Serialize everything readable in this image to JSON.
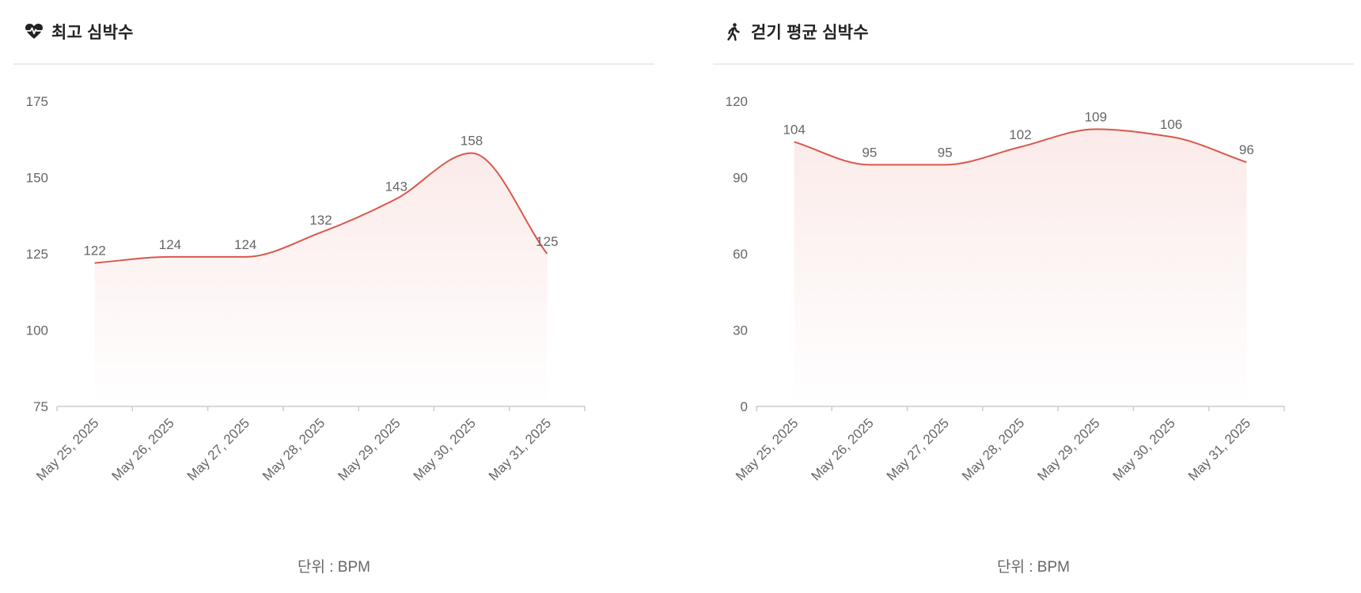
{
  "colors": {
    "line": "#d9574a",
    "axis": "#cccccc",
    "text": "#666666"
  },
  "panels": [
    {
      "title": "최고 심박수",
      "icon": "heart-pulse-icon",
      "unit_label": "단위 : BPM"
    },
    {
      "title": "걷기 평균 심박수",
      "icon": "walking-person-icon",
      "unit_label": "단위 : BPM"
    }
  ],
  "chart_data": [
    {
      "type": "area",
      "categories": [
        "May 25, 2025",
        "May 26, 2025",
        "May 27, 2025",
        "May 28, 2025",
        "May 29, 2025",
        "May 30, 2025",
        "May 31, 2025"
      ],
      "series": [
        {
          "values": [
            122,
            124,
            124,
            132,
            143,
            158,
            125
          ]
        }
      ],
      "yticks": [
        75,
        100,
        125,
        150,
        175
      ],
      "ylim": [
        75,
        175
      ],
      "xlabel": "단위 : BPM",
      "grid": false
    },
    {
      "type": "area",
      "categories": [
        "May 25, 2025",
        "May 26, 2025",
        "May 27, 2025",
        "May 28, 2025",
        "May 29, 2025",
        "May 30, 2025",
        "May 31, 2025"
      ],
      "series": [
        {
          "values": [
            104,
            95,
            95,
            102,
            109,
            106,
            96
          ]
        }
      ],
      "yticks": [
        0,
        30,
        60,
        90,
        120
      ],
      "ylim": [
        0,
        120
      ],
      "xlabel": "단위 : BPM",
      "grid": false
    }
  ]
}
